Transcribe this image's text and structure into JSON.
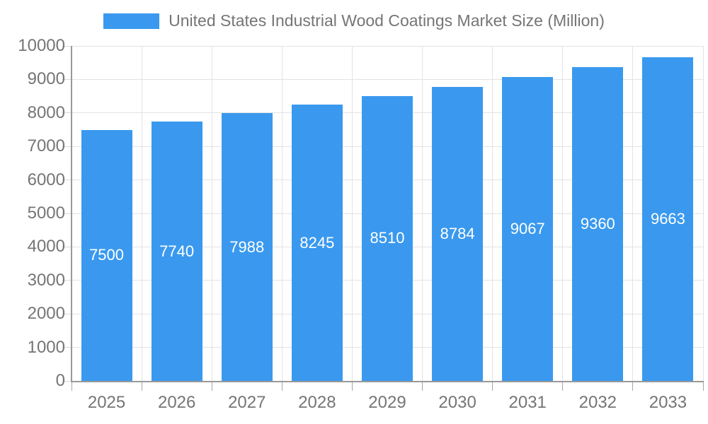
{
  "legend": {
    "label": "United States Industrial Wood Coatings Market Size (Million)"
  },
  "chart_data": {
    "type": "bar",
    "title": "United States Industrial Wood Coatings Market Size (Million)",
    "categories": [
      "2025",
      "2026",
      "2027",
      "2028",
      "2029",
      "2030",
      "2031",
      "2032",
      "2033"
    ],
    "values": [
      7500,
      7740,
      7988,
      8245,
      8510,
      8784,
      9067,
      9360,
      9663
    ],
    "value_labels": [
      "7500",
      "7740",
      "7988",
      "8245",
      "8510",
      "8784",
      "9067",
      "9360",
      "9663"
    ],
    "xlabel": "",
    "ylabel": "",
    "ylim": [
      0,
      10000
    ],
    "yticks": [
      0,
      1000,
      2000,
      3000,
      4000,
      5000,
      6000,
      7000,
      8000,
      9000,
      10000
    ],
    "ytick_labels": [
      "0",
      "1000",
      "2000",
      "3000",
      "4000",
      "5000",
      "6000",
      "7000",
      "8000",
      "9000",
      "10000"
    ],
    "grid": true,
    "legend_position": "top",
    "bar_labels_inside": true
  },
  "colors": {
    "bar": "#3a99ee",
    "bar_label": "#ffffff",
    "grid": "#e3e3e3",
    "axis": "#999999",
    "tick_label": "#757575",
    "background": "#ffffff"
  }
}
